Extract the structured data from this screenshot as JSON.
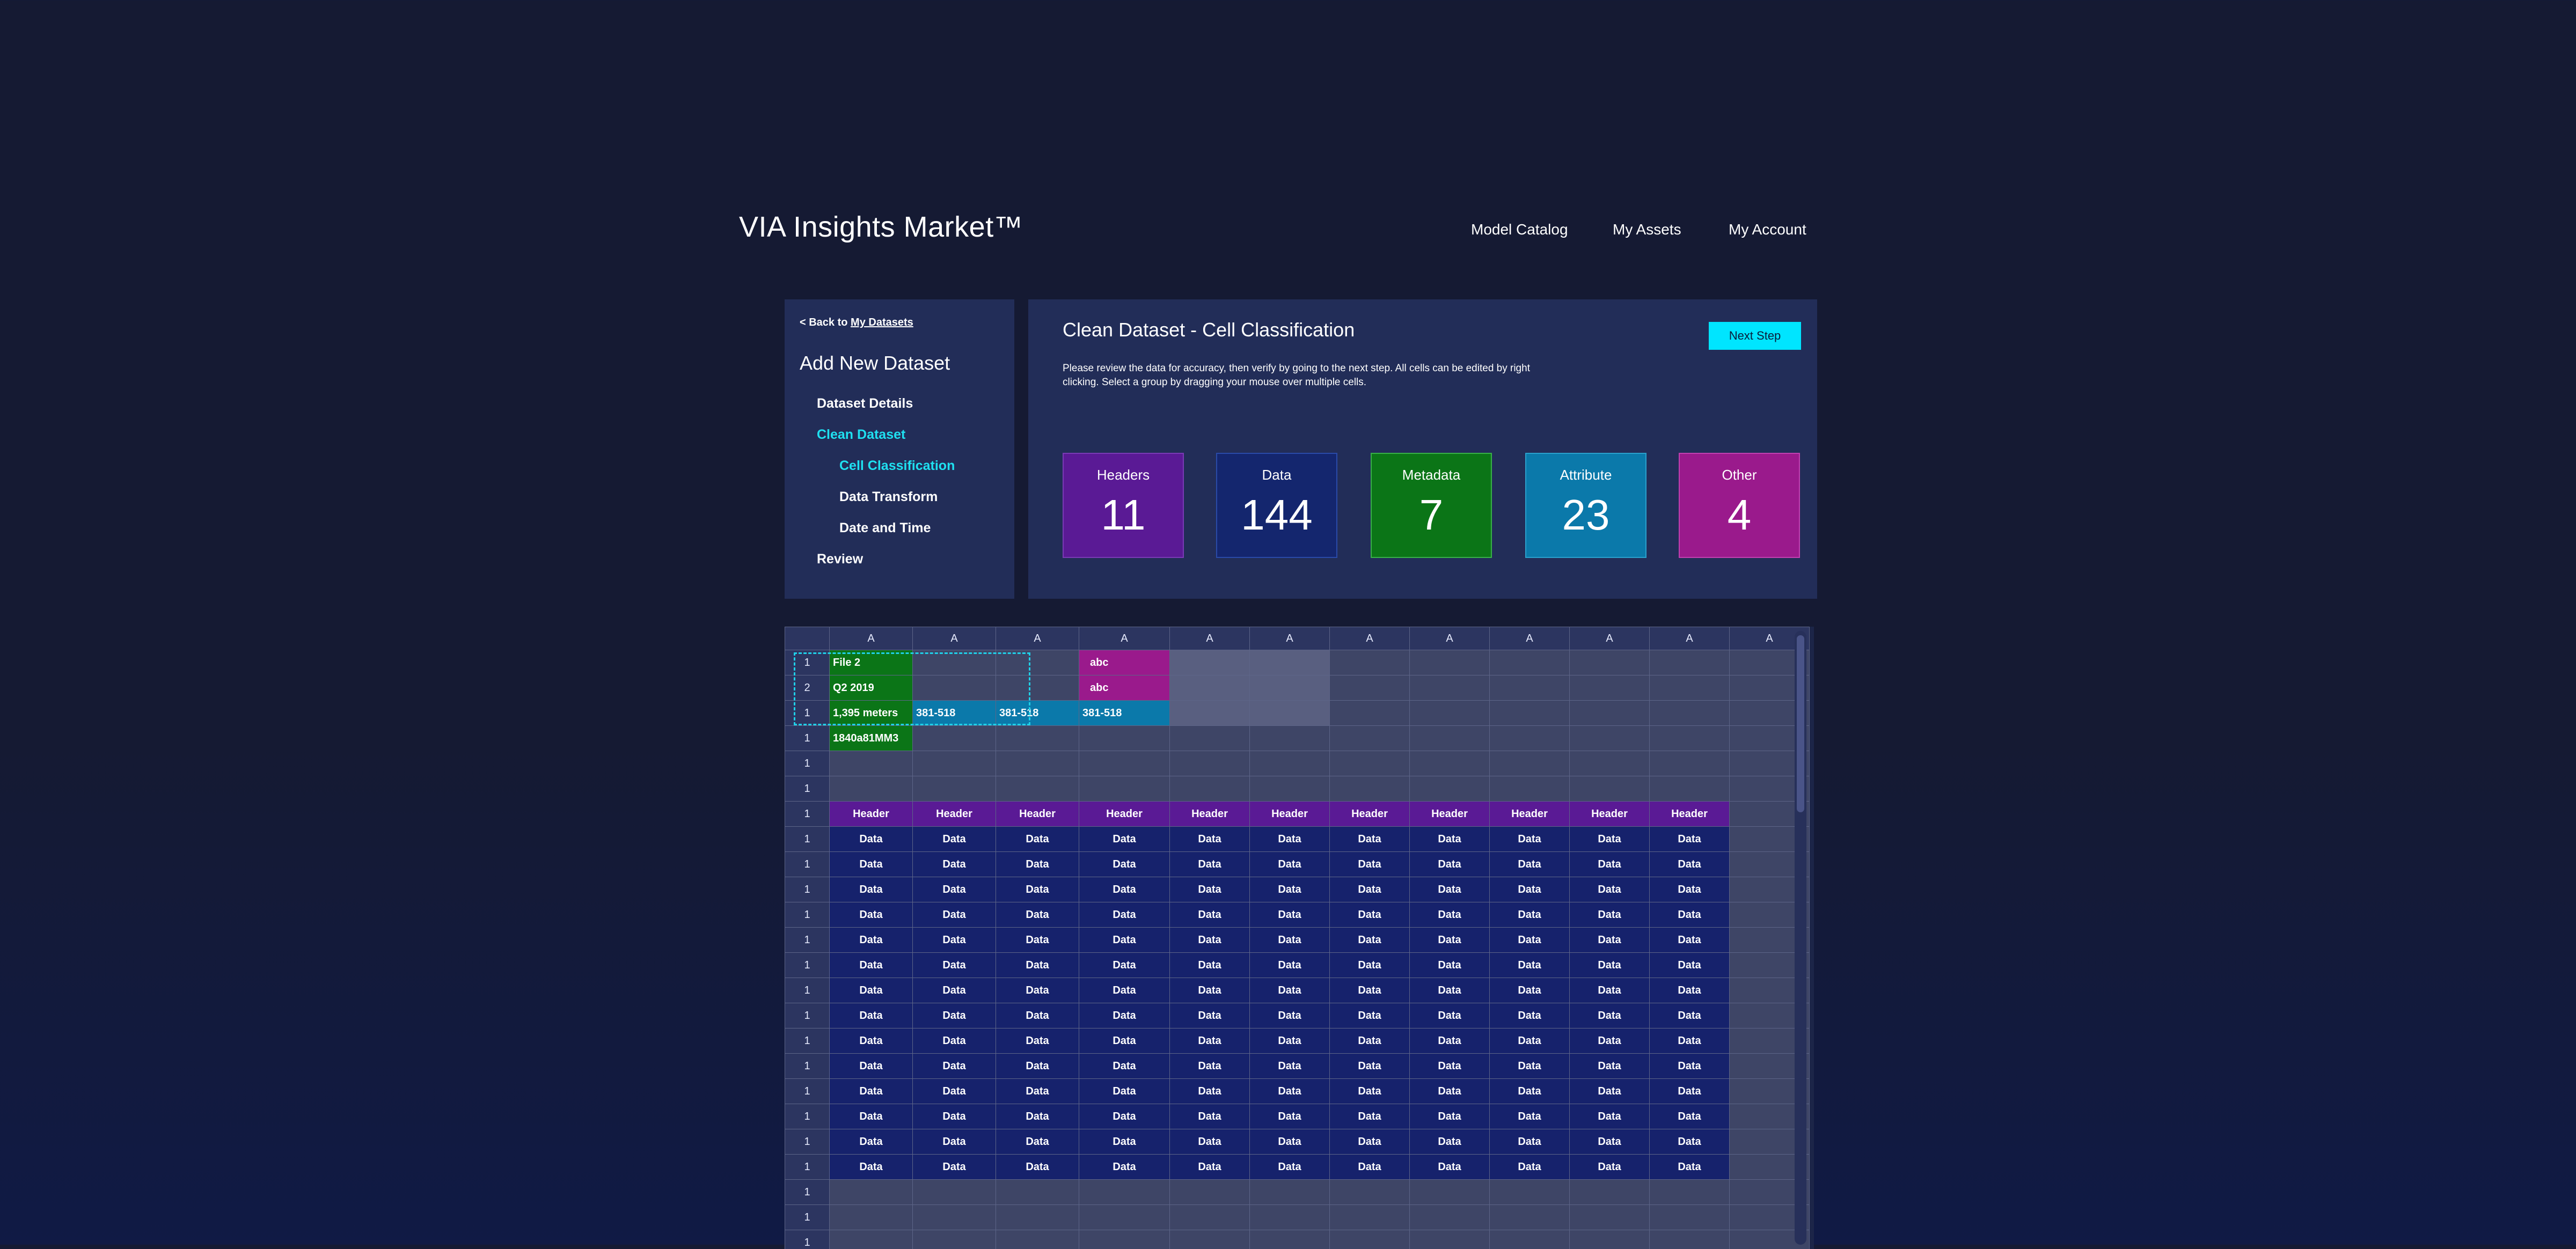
{
  "header": {
    "brand": "VIA Insights Market™",
    "nav": [
      "Model Catalog",
      "My Assets",
      "My Account"
    ]
  },
  "sidebar": {
    "back_prefix": "< Back to ",
    "back_link": "My Datasets",
    "title": "Add New Dataset",
    "steps": [
      {
        "label": "Dataset Details",
        "active": false
      },
      {
        "label": "Clean Dataset",
        "active": true
      },
      {
        "label": "Cell Classification",
        "active": true
      },
      {
        "label": "Data Transform",
        "active": false
      },
      {
        "label": "Date and Time",
        "active": false
      },
      {
        "label": "Review",
        "active": false
      }
    ]
  },
  "panel": {
    "title": "Clean Dataset - Cell Classification",
    "description": "Please review the data for accuracy, then verify by going to the next step. All cells can be edited by right clicking. Select a group by dragging your mouse over multiple cells.",
    "next_button": "Next Step",
    "cards": [
      {
        "label": "Headers",
        "value": "11"
      },
      {
        "label": "Data",
        "value": "144"
      },
      {
        "label": "Metadata",
        "value": "7"
      },
      {
        "label": "Attribute",
        "value": "23"
      },
      {
        "label": "Other",
        "value": "4"
      }
    ]
  },
  "grid": {
    "column_headers": [
      "A",
      "A",
      "A",
      "A",
      "A",
      "A",
      "A",
      "A",
      "A",
      "A",
      "A",
      "A"
    ],
    "cell_values": {
      "file": "File 2",
      "quarter": "Q2 2019",
      "distance": "1,395 meters",
      "code": "1840a81MM3",
      "attr": "381-518",
      "other": "abc",
      "header": "Header",
      "data": "Data"
    },
    "rows": [
      {
        "num": "1",
        "cells": [
          [
            "meta",
            "file"
          ],
          [
            "",
            ""
          ],
          [
            "",
            ""
          ],
          [
            "other",
            "other"
          ],
          [
            "sel",
            ""
          ],
          [
            "sel",
            ""
          ],
          [
            "",
            ""
          ],
          [
            "",
            ""
          ],
          [
            "",
            ""
          ],
          [
            "",
            ""
          ],
          [
            "",
            ""
          ],
          [
            "",
            ""
          ]
        ]
      },
      {
        "num": "2",
        "cells": [
          [
            "meta",
            "quarter"
          ],
          [
            "",
            ""
          ],
          [
            "",
            ""
          ],
          [
            "other",
            "other"
          ],
          [
            "sel",
            ""
          ],
          [
            "sel",
            ""
          ],
          [
            "",
            ""
          ],
          [
            "",
            ""
          ],
          [
            "",
            ""
          ],
          [
            "",
            ""
          ],
          [
            "",
            ""
          ],
          [
            "",
            ""
          ]
        ]
      },
      {
        "num": "1",
        "cells": [
          [
            "meta",
            "distance"
          ],
          [
            "attr",
            "attr"
          ],
          [
            "attr",
            "attr"
          ],
          [
            "attr",
            "attr"
          ],
          [
            "sel",
            ""
          ],
          [
            "sel",
            ""
          ],
          [
            "",
            ""
          ],
          [
            "",
            ""
          ],
          [
            "",
            ""
          ],
          [
            "",
            ""
          ],
          [
            "",
            ""
          ],
          [
            "",
            ""
          ]
        ]
      },
      {
        "num": "1",
        "cells": [
          [
            "meta",
            "code"
          ],
          [
            "",
            ""
          ],
          [
            "",
            ""
          ],
          [
            "",
            ""
          ],
          [
            "",
            ""
          ],
          [
            "",
            ""
          ],
          [
            "",
            ""
          ],
          [
            "",
            ""
          ],
          [
            "",
            ""
          ],
          [
            "",
            ""
          ],
          [
            "",
            ""
          ],
          [
            "",
            ""
          ]
        ]
      },
      {
        "num": "1",
        "cells": "empty"
      },
      {
        "num": "1",
        "cells": "empty"
      },
      {
        "num": "1",
        "cells": "header"
      },
      {
        "num": "1",
        "cells": "data"
      },
      {
        "num": "1",
        "cells": "data"
      },
      {
        "num": "1",
        "cells": "data"
      },
      {
        "num": "1",
        "cells": "data"
      },
      {
        "num": "1",
        "cells": "data"
      },
      {
        "num": "1",
        "cells": "data"
      },
      {
        "num": "1",
        "cells": "data"
      },
      {
        "num": "1",
        "cells": "data"
      },
      {
        "num": "1",
        "cells": "data"
      },
      {
        "num": "1",
        "cells": "data"
      },
      {
        "num": "1",
        "cells": "data"
      },
      {
        "num": "1",
        "cells": "data"
      },
      {
        "num": "1",
        "cells": "data"
      },
      {
        "num": "1",
        "cells": "data"
      },
      {
        "num": "1",
        "cells": "empty"
      },
      {
        "num": "1",
        "cells": "empty"
      },
      {
        "num": "1",
        "cells": "empty"
      }
    ]
  },
  "colors": {
    "background": "#151a33",
    "panel": "#222d58",
    "accent": "#00e5ff",
    "header": "#5a1a95",
    "data": "#16226c",
    "metadata": "#0b7517",
    "attribute": "#0b79aa",
    "other": "#9a1a8c"
  }
}
